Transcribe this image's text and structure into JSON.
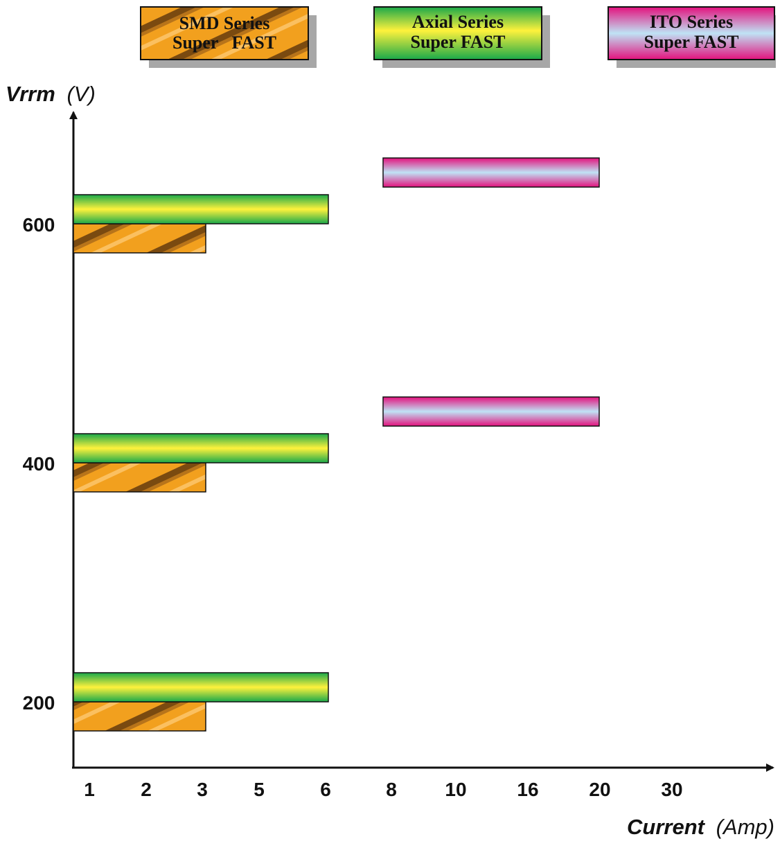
{
  "chart_data": {
    "type": "bar",
    "orientation": "horizontal",
    "legend": [
      {
        "key": "smd",
        "line1": "SMD Series",
        "line2": "Super   FAST"
      },
      {
        "key": "axial",
        "line1": "Axial Series",
        "line2": "Super FAST"
      },
      {
        "key": "ito",
        "line1": "ITO Series",
        "line2": "Super FAST"
      }
    ],
    "legend_placement": "top",
    "y_axis": {
      "label_main": "Vrrm",
      "label_unit": "(V)",
      "ticks": [
        "200",
        "400",
        "600"
      ]
    },
    "x_axis": {
      "label_main": "Current",
      "label_unit": "(Amp)",
      "ticks": [
        "1",
        "2",
        "3",
        "5",
        "6",
        "8",
        "10",
        "16",
        "20",
        "30"
      ]
    },
    "series": [
      {
        "name": "SMD Series Super FAST",
        "key": "smd",
        "points": [
          {
            "vrrm": 200,
            "current_min": 1,
            "current_max": 3
          },
          {
            "vrrm": 400,
            "current_min": 1,
            "current_max": 3
          },
          {
            "vrrm": 600,
            "current_min": 1,
            "current_max": 3
          }
        ]
      },
      {
        "name": "Axial Series Super FAST",
        "key": "axial",
        "points": [
          {
            "vrrm": 200,
            "current_min": 1,
            "current_max": 6
          },
          {
            "vrrm": 400,
            "current_min": 1,
            "current_max": 6
          },
          {
            "vrrm": 600,
            "current_min": 1,
            "current_max": 6
          }
        ]
      },
      {
        "name": "ITO Series Super FAST",
        "key": "ito",
        "points": [
          {
            "vrrm": 400,
            "current_min": 8,
            "current_max": 20
          },
          {
            "vrrm": 600,
            "current_min": 8,
            "current_max": 20
          }
        ]
      }
    ],
    "colors": {
      "smd": "#f2a01e",
      "axial_edge": "#19a84a",
      "axial_center": "#fff23c",
      "ito_edge": "#e3117d",
      "ito_center": "#bfe3f5",
      "axis": "#111111"
    },
    "grid": false
  }
}
